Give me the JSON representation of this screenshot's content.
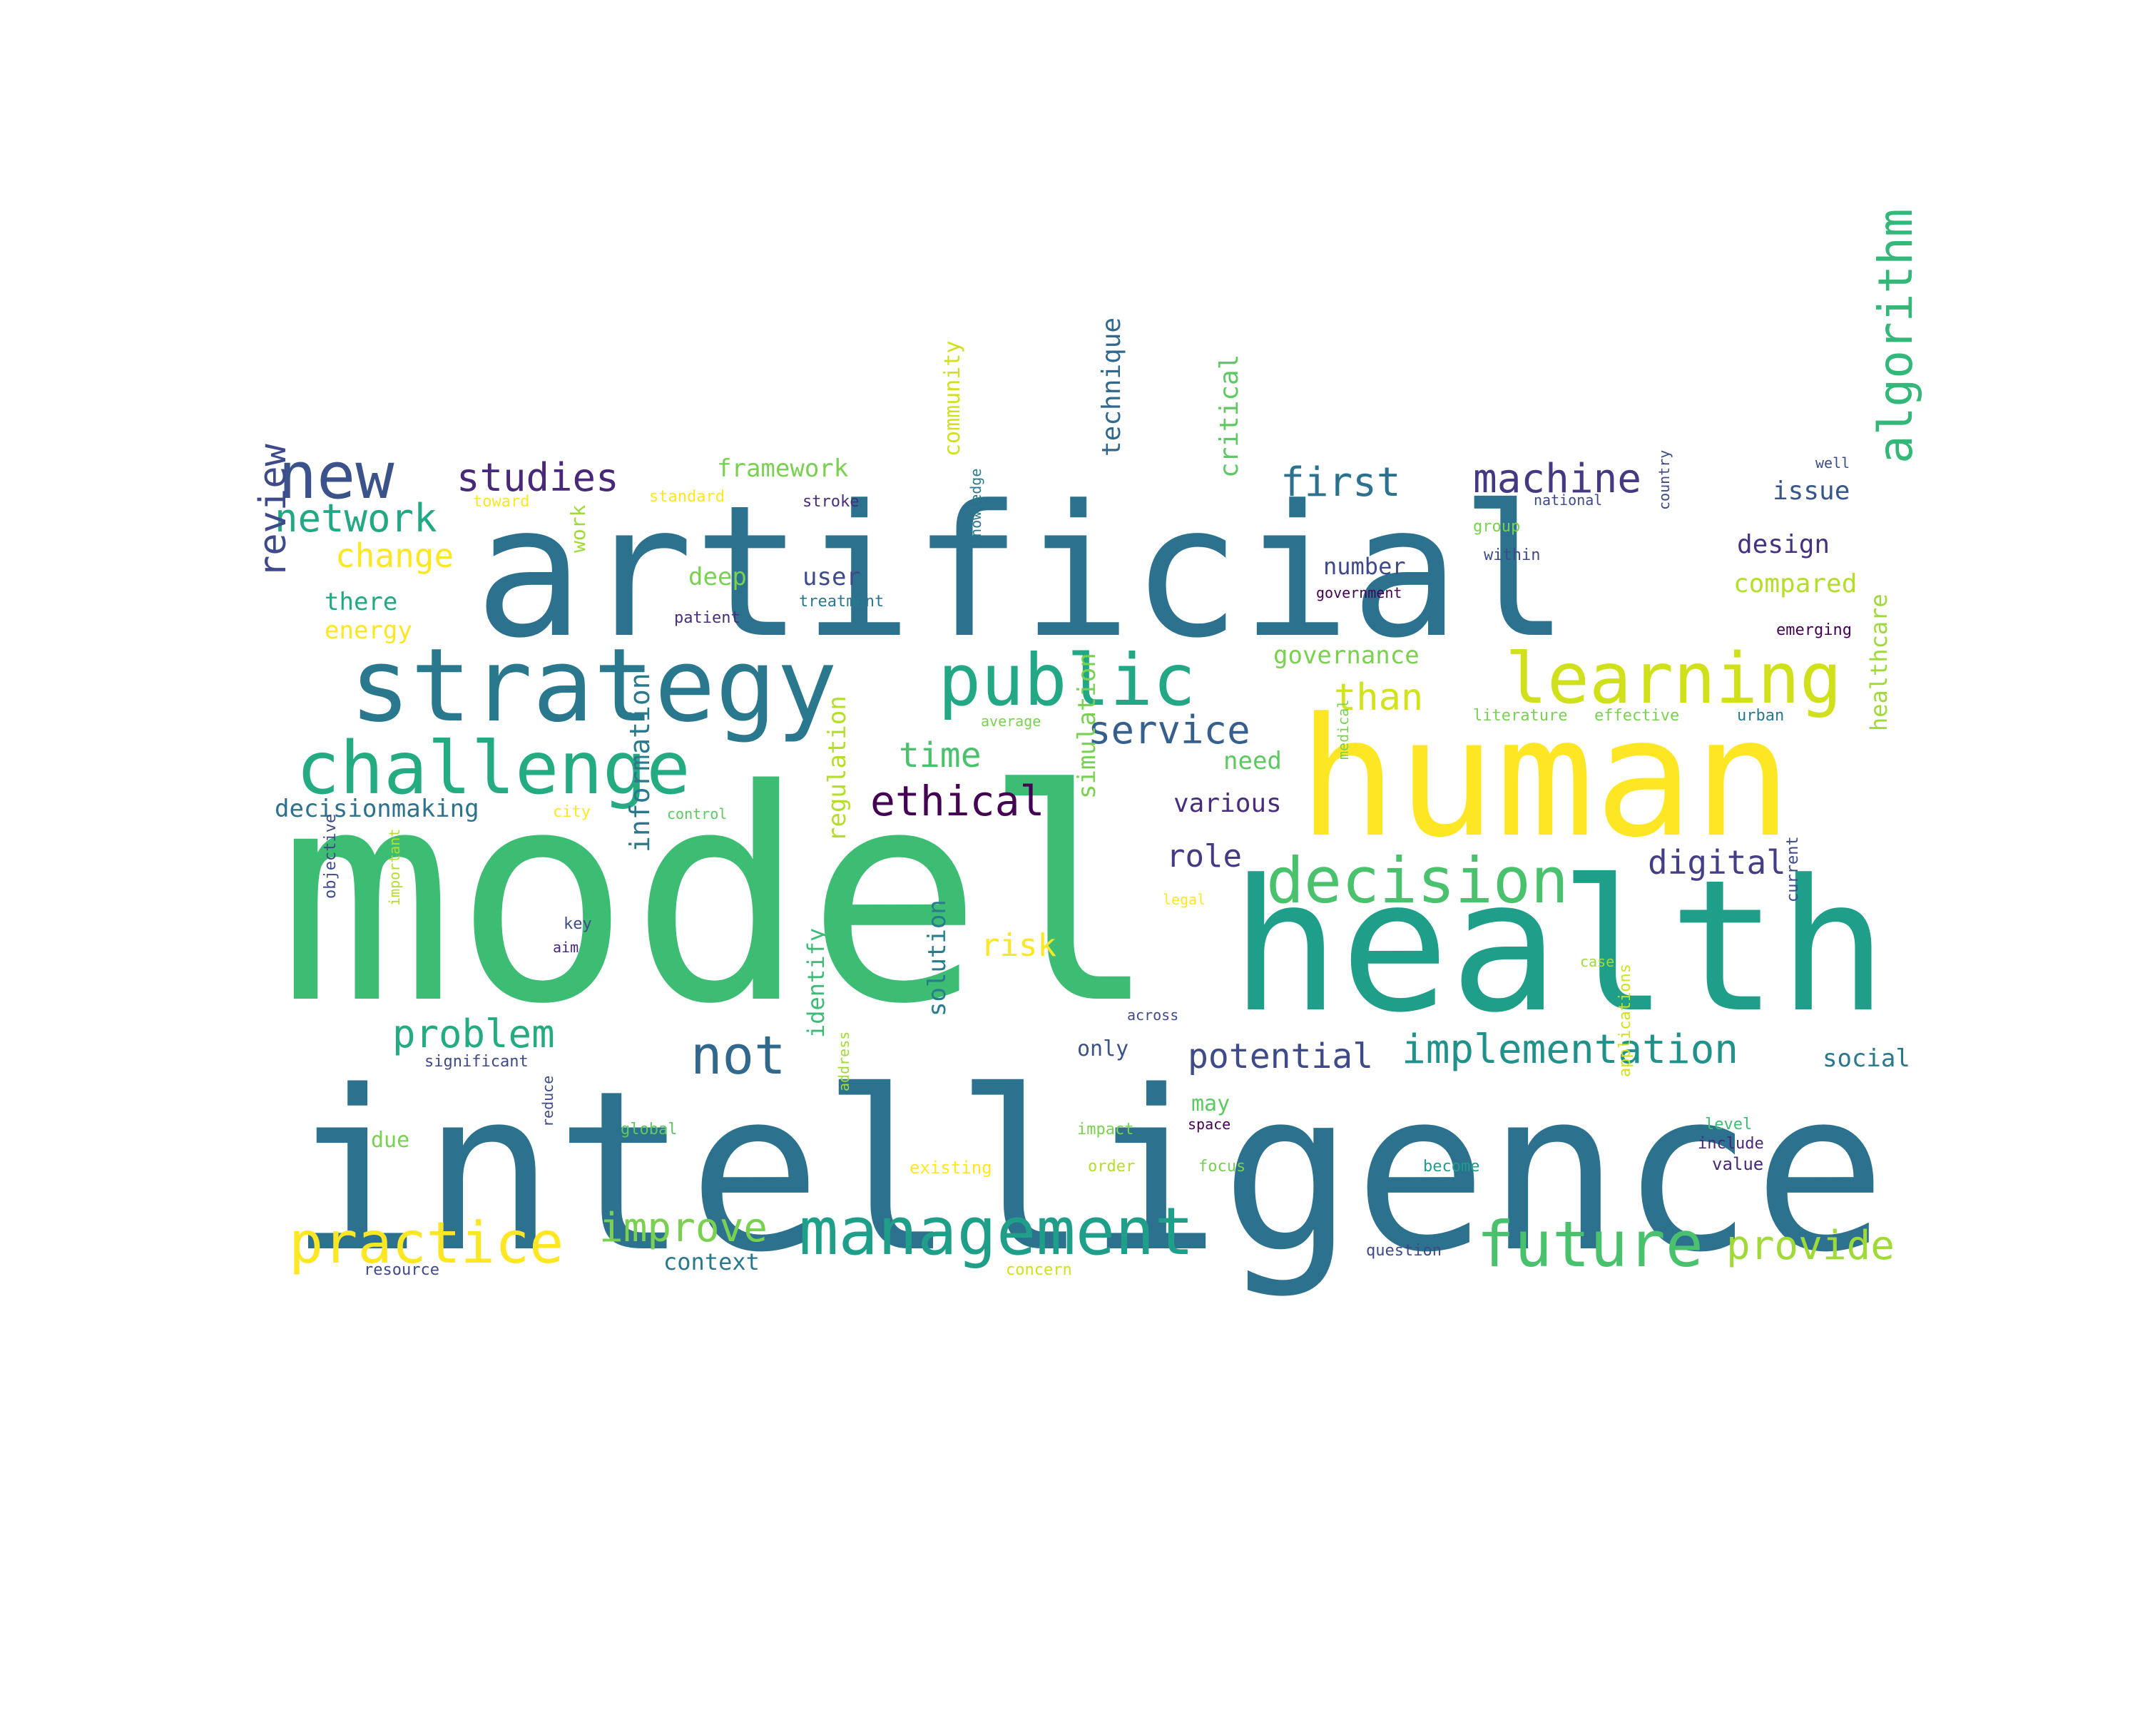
{
  "words": [
    {
      "text": "model",
      "color": "#3dbc74"
    },
    {
      "text": "intelligence",
      "color": "#2c728e"
    },
    {
      "text": "artificial",
      "color": "#2c728e"
    },
    {
      "text": "health",
      "color": "#1f9e89"
    },
    {
      "text": "human",
      "color": "#fde725"
    },
    {
      "text": "strategy",
      "color": "#2a788e"
    },
    {
      "text": "challenge",
      "color": "#25ab82"
    },
    {
      "text": "public",
      "color": "#22a884"
    },
    {
      "text": "learning",
      "color": "#d0e11c"
    },
    {
      "text": "management",
      "color": "#1f9e89"
    },
    {
      "text": "future",
      "color": "#4ac16d"
    },
    {
      "text": "decision",
      "color": "#4ac16d"
    },
    {
      "text": "practice",
      "color": "#fde725"
    },
    {
      "text": "new",
      "color": "#3b528b"
    },
    {
      "text": "not",
      "color": "#31688e"
    },
    {
      "text": "algorithm",
      "color": "#35b779"
    },
    {
      "text": "machine",
      "color": "#443983"
    },
    {
      "text": "first",
      "color": "#2c728e"
    },
    {
      "text": "studies",
      "color": "#482878"
    },
    {
      "text": "network",
      "color": "#22a884"
    },
    {
      "text": "review",
      "color": "#3e4a89"
    },
    {
      "text": "service",
      "color": "#355f8d"
    },
    {
      "text": "ethical",
      "color": "#440154"
    },
    {
      "text": "implementation",
      "color": "#21918c"
    },
    {
      "text": "provide",
      "color": "#a0da39"
    },
    {
      "text": "improve",
      "color": "#7ad151"
    },
    {
      "text": "problem",
      "color": "#25ab82"
    },
    {
      "text": "potential",
      "color": "#3e4a89"
    },
    {
      "text": "digital",
      "color": "#433e85"
    },
    {
      "text": "time",
      "color": "#4ac16d"
    },
    {
      "text": "than",
      "color": "#d2e21b"
    },
    {
      "text": "risk",
      "color": "#fde725"
    },
    {
      "text": "change",
      "color": "#fde725"
    },
    {
      "text": "role",
      "color": "#443983"
    },
    {
      "text": "information",
      "color": "#2a788e"
    },
    {
      "text": "design",
      "color": "#46327e"
    },
    {
      "text": "compared",
      "color": "#b5de2b"
    },
    {
      "text": "issue",
      "color": "#39568c"
    },
    {
      "text": "framework",
      "color": "#7ad151"
    },
    {
      "text": "deep",
      "color": "#7ad151"
    },
    {
      "text": "user",
      "color": "#3e4a89"
    },
    {
      "text": "technique",
      "color": "#31688e"
    },
    {
      "text": "critical",
      "color": "#5ec962"
    },
    {
      "text": "healthcare",
      "color": "#a0da39"
    },
    {
      "text": "governance",
      "color": "#7ad151"
    },
    {
      "text": "number",
      "color": "#3e4a89"
    },
    {
      "text": "there",
      "color": "#22a884"
    },
    {
      "text": "energy",
      "color": "#fde725"
    },
    {
      "text": "community",
      "color": "#d0e11c"
    },
    {
      "text": "decisionmaking",
      "color": "#2c728e"
    },
    {
      "text": "various",
      "color": "#472d7b"
    },
    {
      "text": "need",
      "color": "#5ec962"
    },
    {
      "text": "regulation",
      "color": "#b5de2b"
    },
    {
      "text": "simulation",
      "color": "#7ad151"
    },
    {
      "text": "solution",
      "color": "#287c8e"
    },
    {
      "text": "identify",
      "color": "#3bbb75"
    },
    {
      "text": "social",
      "color": "#2a788e"
    },
    {
      "text": "only",
      "color": "#3b528b"
    },
    {
      "text": "may",
      "color": "#5ec962"
    },
    {
      "text": "due",
      "color": "#7ad151"
    },
    {
      "text": "context",
      "color": "#2a788e"
    },
    {
      "text": "work",
      "color": "#a0da39"
    },
    {
      "text": "current",
      "color": "#3e4a89"
    },
    {
      "text": "applications",
      "color": "#d0e11c"
    },
    {
      "text": "include",
      "color": "#482878"
    },
    {
      "text": "value",
      "color": "#482878"
    },
    {
      "text": "level",
      "color": "#3dbc74"
    },
    {
      "text": "become",
      "color": "#1f9e89"
    },
    {
      "text": "focus",
      "color": "#75d054"
    },
    {
      "text": "order",
      "color": "#b5de2b"
    },
    {
      "text": "impact",
      "color": "#7ad151"
    },
    {
      "text": "space",
      "color": "#440154"
    },
    {
      "text": "existing",
      "color": "#fde725"
    },
    {
      "text": "question",
      "color": "#3e4a89"
    },
    {
      "text": "concern",
      "color": "#d0e11c"
    },
    {
      "text": "resource",
      "color": "#3e4a89"
    },
    {
      "text": "global",
      "color": "#5ec962"
    },
    {
      "text": "reduce",
      "color": "#3e4a89"
    },
    {
      "text": "address",
      "color": "#a0da39"
    },
    {
      "text": "significant",
      "color": "#3e4a89"
    },
    {
      "text": "objective",
      "color": "#3e4a89"
    },
    {
      "text": "important",
      "color": "#b5de2b"
    },
    {
      "text": "key",
      "color": "#3e4a89"
    },
    {
      "text": "aim",
      "color": "#482878"
    },
    {
      "text": "medical",
      "color": "#7ad151"
    },
    {
      "text": "legal",
      "color": "#fde725"
    },
    {
      "text": "case",
      "color": "#a0da39"
    },
    {
      "text": "across",
      "color": "#3e4a89"
    },
    {
      "text": "city",
      "color": "#fde725"
    },
    {
      "text": "control",
      "color": "#5ec962"
    },
    {
      "text": "average",
      "color": "#7ad151"
    },
    {
      "text": "knowledge",
      "color": "#2a788e"
    },
    {
      "text": "patient",
      "color": "#472d7b"
    },
    {
      "text": "treatment",
      "color": "#2a788e"
    },
    {
      "text": "stroke",
      "color": "#472d7b"
    },
    {
      "text": "standard",
      "color": "#fde725"
    },
    {
      "text": "toward",
      "color": "#fde725"
    },
    {
      "text": "well",
      "color": "#3e4a89"
    },
    {
      "text": "national",
      "color": "#3e4a89"
    },
    {
      "text": "group",
      "color": "#7ad151"
    },
    {
      "text": "within",
      "color": "#3e4a89"
    },
    {
      "text": "country",
      "color": "#3e4a89"
    },
    {
      "text": "government",
      "color": "#440154"
    },
    {
      "text": "emerging",
      "color": "#440154"
    },
    {
      "text": "literature",
      "color": "#7ad151"
    },
    {
      "text": "effective",
      "color": "#7ad151"
    },
    {
      "text": "urban",
      "color": "#2a788e"
    }
  ]
}
